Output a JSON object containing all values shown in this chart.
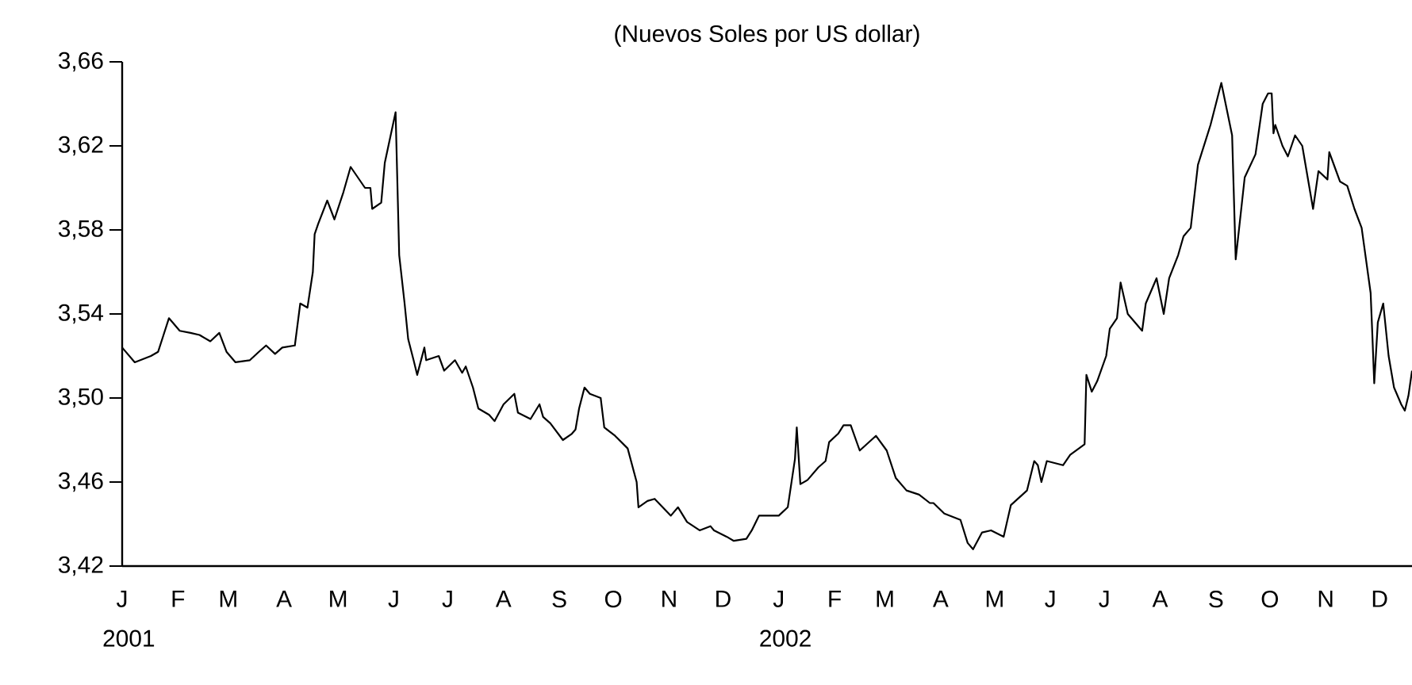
{
  "chart_data": {
    "type": "line",
    "title": "(Nuevos Soles por US dollar)",
    "x": [
      "2001-01-01",
      "2001-01-08",
      "2001-01-17",
      "2001-01-21",
      "2001-01-24",
      "2001-01-27",
      "2001-02-02",
      "2001-02-08",
      "2001-02-13",
      "2001-02-19",
      "2001-02-24",
      "2001-02-28",
      "2001-03-05",
      "2001-03-13",
      "2001-03-18",
      "2001-03-22",
      "2001-03-27",
      "2001-03-31",
      "2001-04-07",
      "2001-04-10",
      "2001-04-14",
      "2001-04-17",
      "2001-04-18",
      "2001-04-20",
      "2001-04-25",
      "2001-04-29",
      "2001-05-04",
      "2001-05-08",
      "2001-05-16",
      "2001-05-19",
      "2001-05-20",
      "2001-05-25",
      "2001-05-27",
      "2001-06-02",
      "2001-06-04",
      "2001-06-07",
      "2001-06-09",
      "2001-06-12",
      "2001-06-14",
      "2001-06-18",
      "2001-06-19",
      "2001-06-26",
      "2001-06-29",
      "2001-07-05",
      "2001-07-09",
      "2001-07-11",
      "2001-07-15",
      "2001-07-18",
      "2001-07-24",
      "2001-07-27",
      "2001-08-01",
      "2001-08-07",
      "2001-08-09",
      "2001-08-16",
      "2001-08-21",
      "2001-08-23",
      "2001-08-27",
      "2001-09-03",
      "2001-09-08",
      "2001-09-10",
      "2001-09-12",
      "2001-09-15",
      "2001-09-18",
      "2001-09-24",
      "2001-09-26",
      "2001-10-02",
      "2001-10-09",
      "2001-10-14",
      "2001-10-15",
      "2001-10-20",
      "2001-10-24",
      "2001-11-02",
      "2001-11-06",
      "2001-11-11",
      "2001-11-18",
      "2001-11-24",
      "2001-11-26",
      "2001-12-03",
      "2001-12-07",
      "2001-12-14",
      "2001-12-17",
      "2001-12-21",
      "2002-01-01",
      "2002-01-06",
      "2002-01-10",
      "2002-01-11",
      "2002-01-13",
      "2002-01-17",
      "2002-01-23",
      "2002-01-27",
      "2002-01-29",
      "2002-02-03",
      "2002-02-06",
      "2002-02-10",
      "2002-02-15",
      "2002-02-24",
      "2002-03-02",
      "2002-03-07",
      "2002-03-13",
      "2002-03-20",
      "2002-03-26",
      "2002-03-28",
      "2002-04-03",
      "2002-04-12",
      "2002-04-16",
      "2002-04-19",
      "2002-04-24",
      "2002-04-29",
      "2002-05-06",
      "2002-05-10",
      "2002-05-19",
      "2002-05-23",
      "2002-05-25",
      "2002-05-27",
      "2002-05-30",
      "2002-06-08",
      "2002-06-12",
      "2002-06-20",
      "2002-06-21",
      "2002-06-24",
      "2002-06-27",
      "2002-07-02",
      "2002-07-04",
      "2002-07-08",
      "2002-07-10",
      "2002-07-14",
      "2002-07-22",
      "2002-07-24",
      "2002-07-30",
      "2002-08-03",
      "2002-08-06",
      "2002-08-11",
      "2002-08-14",
      "2002-08-18",
      "2002-08-22",
      "2002-08-29",
      "2002-09-04",
      "2002-09-10",
      "2002-09-12",
      "2002-09-17",
      "2002-09-23",
      "2002-09-27",
      "2002-09-30",
      "2002-10-02",
      "2002-10-03",
      "2002-10-04",
      "2002-10-08",
      "2002-10-11",
      "2002-10-15",
      "2002-10-19",
      "2002-10-23",
      "2002-10-25",
      "2002-10-28",
      "2002-11-02",
      "2002-11-03",
      "2002-11-06",
      "2002-11-09",
      "2002-11-13",
      "2002-11-17",
      "2002-11-21",
      "2002-11-26",
      "2002-11-27",
      "2002-11-28",
      "2002-11-30",
      "2002-12-03",
      "2002-12-06",
      "2002-12-09",
      "2002-12-13",
      "2002-12-15",
      "2002-12-17",
      "2002-12-19"
    ],
    "series": [
      {
        "color": "#000000",
        "values": [
          3.524,
          3.517,
          3.52,
          3.522,
          3.53,
          3.538,
          3.532,
          3.531,
          3.53,
          3.527,
          3.531,
          3.522,
          3.517,
          3.518,
          3.522,
          3.525,
          3.521,
          3.524,
          3.525,
          3.545,
          3.543,
          3.56,
          3.578,
          3.583,
          3.594,
          3.585,
          3.598,
          3.61,
          3.6,
          3.6,
          3.59,
          3.593,
          3.612,
          3.636,
          3.568,
          3.545,
          3.528,
          3.518,
          3.511,
          3.524,
          3.518,
          3.52,
          3.513,
          3.518,
          3.512,
          3.515,
          3.505,
          3.495,
          3.492,
          3.489,
          3.497,
          3.502,
          3.493,
          3.49,
          3.497,
          3.491,
          3.488,
          3.48,
          3.483,
          3.485,
          3.495,
          3.505,
          3.502,
          3.5,
          3.486,
          3.482,
          3.476,
          3.46,
          3.448,
          3.451,
          3.452,
          3.444,
          3.448,
          3.441,
          3.437,
          3.439,
          3.437,
          3.434,
          3.432,
          3.433,
          3.437,
          3.444,
          3.444,
          3.448,
          3.471,
          3.486,
          3.459,
          3.461,
          3.467,
          3.47,
          3.479,
          3.483,
          3.487,
          3.487,
          3.475,
          3.482,
          3.475,
          3.462,
          3.456,
          3.454,
          3.45,
          3.45,
          3.445,
          3.442,
          3.431,
          3.428,
          3.436,
          3.437,
          3.434,
          3.449,
          3.456,
          3.47,
          3.468,
          3.46,
          3.47,
          3.468,
          3.473,
          3.478,
          3.511,
          3.503,
          3.508,
          3.52,
          3.533,
          3.538,
          3.555,
          3.54,
          3.532,
          3.545,
          3.557,
          3.54,
          3.557,
          3.568,
          3.577,
          3.581,
          3.611,
          3.63,
          3.65,
          3.625,
          3.566,
          3.605,
          3.616,
          3.64,
          3.645,
          3.645,
          3.626,
          3.63,
          3.62,
          3.615,
          3.625,
          3.62,
          3.6,
          3.59,
          3.608,
          3.604,
          3.617,
          3.61,
          3.603,
          3.601,
          3.59,
          3.581,
          3.55,
          3.529,
          3.507,
          3.536,
          3.545,
          3.52,
          3.505,
          3.497,
          3.494,
          3.501,
          3.513
        ]
      }
    ],
    "xlim": [
      "2001-01-01",
      "2002-12-19"
    ],
    "xticks": [
      {
        "value": "2001-01-01",
        "label": "J 2001"
      },
      {
        "value": "2001-02-01",
        "label": "F"
      },
      {
        "value": "2001-03-01",
        "label": "M"
      },
      {
        "value": "2001-04-01",
        "label": "A"
      },
      {
        "value": "2001-05-01",
        "label": "M"
      },
      {
        "value": "2001-06-01",
        "label": "J"
      },
      {
        "value": "2001-07-01",
        "label": "J"
      },
      {
        "value": "2001-08-01",
        "label": "A"
      },
      {
        "value": "2001-09-01",
        "label": "S"
      },
      {
        "value": "2001-10-01",
        "label": "O"
      },
      {
        "value": "2001-11-01",
        "label": "N"
      },
      {
        "value": "2001-12-01",
        "label": "D"
      },
      {
        "value": "2002-01-01",
        "label": "J 2002"
      },
      {
        "value": "2002-02-01",
        "label": "F"
      },
      {
        "value": "2002-03-01",
        "label": "M"
      },
      {
        "value": "2002-04-01",
        "label": "A"
      },
      {
        "value": "2002-05-01",
        "label": "M"
      },
      {
        "value": "2002-06-01",
        "label": "J"
      },
      {
        "value": "2002-07-01",
        "label": "J"
      },
      {
        "value": "2002-08-01",
        "label": "A"
      },
      {
        "value": "2002-09-01",
        "label": "S"
      },
      {
        "value": "2002-10-01",
        "label": "O"
      },
      {
        "value": "2002-11-01",
        "label": "N"
      },
      {
        "value": "2002-12-01",
        "label": "D"
      }
    ],
    "ylim": [
      3.42,
      3.66
    ],
    "yticks": [
      {
        "value": 3.42,
        "label": "3,42"
      },
      {
        "value": 3.46,
        "label": "3,46"
      },
      {
        "value": 3.5,
        "label": "3,50"
      },
      {
        "value": 3.54,
        "label": "3,54"
      },
      {
        "value": 3.58,
        "label": "3,58"
      },
      {
        "value": 3.62,
        "label": "3,62"
      },
      {
        "value": 3.66,
        "label": "3,66"
      }
    ],
    "grid": false,
    "marker": "none",
    "line_style": "solid"
  }
}
